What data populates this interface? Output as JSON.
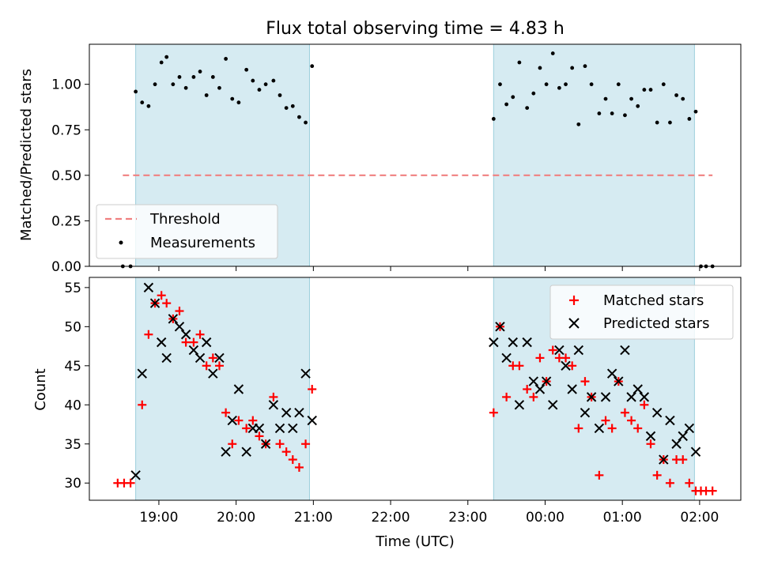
{
  "chart_data": [
    {
      "panel": "top",
      "type": "scatter",
      "title": "Flux total observing time = 4.83 h",
      "ylabel": "Matched/Predicted stars",
      "ylim": [
        0,
        1.22
      ],
      "yticks": [
        0,
        0.25,
        0.5,
        0.75,
        1.0
      ],
      "ytick_labels": [
        "0.00",
        "0.25",
        "0.50",
        "0.75",
        "1.00"
      ],
      "legend": {
        "placement": "lower-left",
        "entries": [
          {
            "label": "Threshold",
            "style": "dashed-line",
            "color": "#f08080"
          },
          {
            "label": "Measurements",
            "style": "dot",
            "color": "#000000"
          }
        ]
      },
      "threshold": {
        "value": 0.5,
        "x_start": "18:32",
        "x_end": "02:10",
        "color": "#f08080"
      },
      "shaded_spans": [
        {
          "start": "18:42",
          "end": "20:57"
        },
        {
          "start": "23:20",
          "end": "01:56"
        }
      ],
      "span_color": "#add8e6",
      "series": [
        {
          "name": "Measurements",
          "color": "#000000",
          "points": [
            [
              "18:32",
              0.0
            ],
            [
              "18:38",
              0.0
            ],
            [
              "18:42",
              0.96
            ],
            [
              "18:47",
              0.9
            ],
            [
              "18:52",
              0.88
            ],
            [
              "18:57",
              1.0
            ],
            [
              "19:02",
              1.12
            ],
            [
              "19:06",
              1.15
            ],
            [
              "19:11",
              1.0
            ],
            [
              "19:16",
              1.04
            ],
            [
              "19:21",
              0.98
            ],
            [
              "19:27",
              1.04
            ],
            [
              "19:32",
              1.07
            ],
            [
              "19:37",
              0.94
            ],
            [
              "19:42",
              1.04
            ],
            [
              "19:47",
              0.98
            ],
            [
              "19:52",
              1.14
            ],
            [
              "19:57",
              0.92
            ],
            [
              "20:02",
              0.9
            ],
            [
              "20:08",
              1.08
            ],
            [
              "20:13",
              1.02
            ],
            [
              "20:18",
              0.97
            ],
            [
              "20:23",
              1.0
            ],
            [
              "20:29",
              1.02
            ],
            [
              "20:34",
              0.94
            ],
            [
              "20:39",
              0.87
            ],
            [
              "20:44",
              0.88
            ],
            [
              "20:49",
              0.82
            ],
            [
              "20:54",
              0.79
            ],
            [
              "20:59",
              1.1
            ],
            [
              "23:20",
              0.81
            ],
            [
              "23:25",
              1.0
            ],
            [
              "23:30",
              0.89
            ],
            [
              "23:35",
              0.93
            ],
            [
              "23:40",
              1.12
            ],
            [
              "23:46",
              0.87
            ],
            [
              "23:51",
              0.95
            ],
            [
              "23:56",
              1.09
            ],
            [
              "00:01",
              1.0
            ],
            [
              "00:06",
              1.17
            ],
            [
              "00:11",
              0.98
            ],
            [
              "00:16",
              1.0
            ],
            [
              "00:21",
              1.09
            ],
            [
              "00:26",
              0.78
            ],
            [
              "00:31",
              1.1
            ],
            [
              "00:36",
              1.0
            ],
            [
              "00:42",
              0.84
            ],
            [
              "00:47",
              0.92
            ],
            [
              "00:52",
              0.84
            ],
            [
              "00:57",
              1.0
            ],
            [
              "01:02",
              0.83
            ],
            [
              "01:07",
              0.92
            ],
            [
              "01:12",
              0.88
            ],
            [
              "01:17",
              0.97
            ],
            [
              "01:22",
              0.97
            ],
            [
              "01:27",
              0.79
            ],
            [
              "01:32",
              1.0
            ],
            [
              "01:37",
              0.79
            ],
            [
              "01:42",
              0.94
            ],
            [
              "01:47",
              0.92
            ],
            [
              "01:52",
              0.81
            ],
            [
              "01:57",
              0.85
            ],
            [
              "02:01",
              0.0
            ],
            [
              "02:05",
              0.0
            ],
            [
              "02:10",
              0.0
            ]
          ]
        }
      ]
    },
    {
      "panel": "bottom",
      "type": "scatter",
      "xlabel": "Time (UTC)",
      "ylabel": "Count",
      "ylim": [
        27.8,
        56.3
      ],
      "yticks": [
        30,
        35,
        40,
        45,
        50,
        55
      ],
      "ytick_labels": [
        "30",
        "35",
        "40",
        "45",
        "50",
        "55"
      ],
      "xlim": [
        "18:06",
        "02:32"
      ],
      "xticks": [
        "19:00",
        "20:00",
        "21:00",
        "22:00",
        "23:00",
        "00:00",
        "01:00",
        "02:00"
      ],
      "xtick_labels": [
        "19:00",
        "20:00",
        "21:00",
        "22:00",
        "23:00",
        "00:00",
        "01:00",
        "02:00"
      ],
      "legend": {
        "placement": "top-right",
        "entries": [
          {
            "label": "Matched stars",
            "style": "plus",
            "color": "#ff0000"
          },
          {
            "label": "Predicted stars",
            "style": "x",
            "color": "#000000"
          }
        ]
      },
      "shaded_spans": [
        {
          "start": "18:42",
          "end": "20:57"
        },
        {
          "start": "23:20",
          "end": "01:56"
        }
      ],
      "span_color": "#add8e6",
      "series": [
        {
          "name": "Matched stars",
          "marker": "plus",
          "color": "#ff0000",
          "points": [
            [
              "18:28",
              30
            ],
            [
              "18:33",
              30
            ],
            [
              "18:38",
              30
            ],
            [
              "18:47",
              40
            ],
            [
              "18:52",
              49
            ],
            [
              "18:57",
              53
            ],
            [
              "19:02",
              54
            ],
            [
              "19:06",
              53
            ],
            [
              "19:11",
              51
            ],
            [
              "19:16",
              52
            ],
            [
              "19:21",
              48
            ],
            [
              "19:27",
              48
            ],
            [
              "19:32",
              49
            ],
            [
              "19:37",
              45
            ],
            [
              "19:42",
              46
            ],
            [
              "19:47",
              45
            ],
            [
              "19:52",
              39
            ],
            [
              "19:57",
              35
            ],
            [
              "20:02",
              38
            ],
            [
              "20:08",
              37
            ],
            [
              "20:13",
              38
            ],
            [
              "20:18",
              36
            ],
            [
              "20:23",
              35
            ],
            [
              "20:29",
              41
            ],
            [
              "20:34",
              35
            ],
            [
              "20:39",
              34
            ],
            [
              "20:44",
              33
            ],
            [
              "20:49",
              32
            ],
            [
              "20:54",
              35
            ],
            [
              "20:59",
              42
            ],
            [
              "23:20",
              39
            ],
            [
              "23:25",
              50
            ],
            [
              "23:30",
              41
            ],
            [
              "23:35",
              45
            ],
            [
              "23:40",
              45
            ],
            [
              "23:46",
              42
            ],
            [
              "23:51",
              41
            ],
            [
              "23:56",
              46
            ],
            [
              "00:01",
              43
            ],
            [
              "00:06",
              47
            ],
            [
              "00:11",
              46
            ],
            [
              "00:16",
              46
            ],
            [
              "00:21",
              45
            ],
            [
              "00:26",
              37
            ],
            [
              "00:31",
              43
            ],
            [
              "00:36",
              41
            ],
            [
              "00:42",
              31
            ],
            [
              "00:47",
              38
            ],
            [
              "00:52",
              37
            ],
            [
              "00:57",
              43
            ],
            [
              "01:02",
              39
            ],
            [
              "01:07",
              38
            ],
            [
              "01:12",
              37
            ],
            [
              "01:17",
              40
            ],
            [
              "01:22",
              35
            ],
            [
              "01:27",
              31
            ],
            [
              "01:32",
              33
            ],
            [
              "01:37",
              30
            ],
            [
              "01:42",
              33
            ],
            [
              "01:47",
              33
            ],
            [
              "01:52",
              30
            ],
            [
              "01:57",
              29
            ],
            [
              "02:01",
              29
            ],
            [
              "02:05",
              29
            ],
            [
              "02:10",
              29
            ]
          ]
        },
        {
          "name": "Predicted stars",
          "marker": "x",
          "color": "#000000",
          "points": [
            [
              "18:42",
              31
            ],
            [
              "18:47",
              44
            ],
            [
              "18:52",
              55
            ],
            [
              "18:57",
              53
            ],
            [
              "19:02",
              48
            ],
            [
              "19:06",
              46
            ],
            [
              "19:11",
              51
            ],
            [
              "19:16",
              50
            ],
            [
              "19:21",
              49
            ],
            [
              "19:27",
              47
            ],
            [
              "19:32",
              46
            ],
            [
              "19:37",
              48
            ],
            [
              "19:42",
              44
            ],
            [
              "19:47",
              46
            ],
            [
              "19:52",
              34
            ],
            [
              "19:57",
              38
            ],
            [
              "20:02",
              42
            ],
            [
              "20:08",
              34
            ],
            [
              "20:13",
              37
            ],
            [
              "20:18",
              37
            ],
            [
              "20:23",
              35
            ],
            [
              "20:29",
              40
            ],
            [
              "20:34",
              37
            ],
            [
              "20:39",
              39
            ],
            [
              "20:44",
              37
            ],
            [
              "20:49",
              39
            ],
            [
              "20:54",
              44
            ],
            [
              "20:59",
              38
            ],
            [
              "23:20",
              48
            ],
            [
              "23:25",
              50
            ],
            [
              "23:30",
              46
            ],
            [
              "23:35",
              48
            ],
            [
              "23:40",
              40
            ],
            [
              "23:46",
              48
            ],
            [
              "23:51",
              43
            ],
            [
              "23:56",
              42
            ],
            [
              "00:01",
              43
            ],
            [
              "00:06",
              40
            ],
            [
              "00:11",
              47
            ],
            [
              "00:16",
              45
            ],
            [
              "00:21",
              42
            ],
            [
              "00:26",
              47
            ],
            [
              "00:31",
              39
            ],
            [
              "00:36",
              41
            ],
            [
              "00:42",
              37
            ],
            [
              "00:47",
              41
            ],
            [
              "00:52",
              44
            ],
            [
              "00:57",
              43
            ],
            [
              "01:02",
              47
            ],
            [
              "01:07",
              41
            ],
            [
              "01:12",
              42
            ],
            [
              "01:17",
              41
            ],
            [
              "01:22",
              36
            ],
            [
              "01:27",
              39
            ],
            [
              "01:32",
              33
            ],
            [
              "01:37",
              38
            ],
            [
              "01:42",
              35
            ],
            [
              "01:47",
              36
            ],
            [
              "01:52",
              37
            ],
            [
              "01:57",
              34
            ]
          ]
        }
      ]
    }
  ]
}
